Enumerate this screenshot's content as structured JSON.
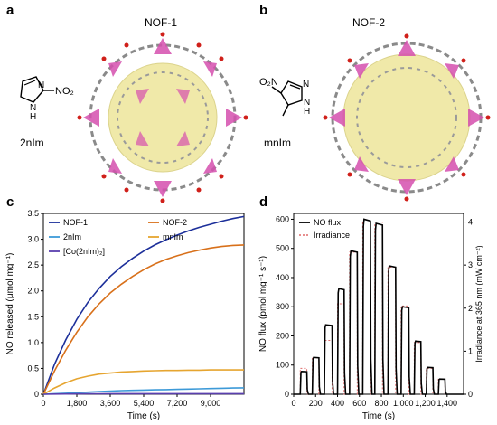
{
  "panels": {
    "a": {
      "letter": "a",
      "title": "NOF-1",
      "ligand_label": "2nIm",
      "ligand_substituent": "NO₂"
    },
    "b": {
      "letter": "b",
      "title": "NOF-2",
      "ligand_label": "mnIm",
      "ligand_substituent": "O₂N"
    },
    "c": {
      "letter": "c"
    },
    "d": {
      "letter": "d"
    }
  },
  "structure_text": {
    "nh": "N\nH",
    "n": "N",
    "nh_b": "N\nH",
    "n_b": "N"
  },
  "colors": {
    "nof1": "#1c2f9a",
    "nof2": "#d8701a",
    "im2n": "#3d9ad8",
    "mnim": "#e6a530",
    "co2nim": "#5a3fae",
    "noflux": "#000000",
    "irradiance": "#e06a6a",
    "tetra": "#d54fae",
    "sphere": "#efe7a0"
  },
  "chart_data": [
    {
      "type": "line",
      "title": "",
      "xlabel": "Time (s)",
      "ylabel": "NO released (μmol mg⁻¹)",
      "xlim": [
        0,
        10800
      ],
      "ylim": [
        0,
        3.5
      ],
      "xticks": [
        "0",
        "1,800",
        "3,600",
        "5,400",
        "7,200",
        "9,000"
      ],
      "yticks": [
        "0",
        "0.5",
        "1.0",
        "1.5",
        "2.0",
        "2.5",
        "3.0",
        "3.5"
      ],
      "legend": "top-left",
      "x": [
        0,
        600,
        1200,
        1800,
        2400,
        3000,
        3600,
        4200,
        4800,
        5400,
        6000,
        6600,
        7200,
        7800,
        8400,
        9000,
        9600,
        10200,
        10800
      ],
      "series": [
        {
          "name": "NOF-1",
          "values": [
            0,
            0.58,
            1.05,
            1.45,
            1.78,
            2.05,
            2.28,
            2.47,
            2.63,
            2.77,
            2.89,
            2.99,
            3.08,
            3.16,
            3.23,
            3.29,
            3.35,
            3.4,
            3.44
          ]
        },
        {
          "name": "NOF-2",
          "values": [
            0,
            0.45,
            0.85,
            1.2,
            1.5,
            1.75,
            1.96,
            2.13,
            2.28,
            2.41,
            2.52,
            2.61,
            2.68,
            2.74,
            2.79,
            2.83,
            2.86,
            2.88,
            2.89
          ]
        },
        {
          "name": "2nIm",
          "values": [
            0,
            0.01,
            0.02,
            0.03,
            0.04,
            0.05,
            0.06,
            0.07,
            0.075,
            0.08,
            0.085,
            0.09,
            0.095,
            0.1,
            0.105,
            0.11,
            0.115,
            0.12,
            0.125
          ]
        },
        {
          "name": "mnIm",
          "values": [
            0,
            0.12,
            0.22,
            0.3,
            0.35,
            0.39,
            0.41,
            0.43,
            0.44,
            0.45,
            0.455,
            0.46,
            0.46,
            0.465,
            0.465,
            0.47,
            0.47,
            0.47,
            0.47
          ]
        },
        {
          "name": "[Co(2nIm)₂]",
          "values": [
            0,
            0.003,
            0.005,
            0.007,
            0.008,
            0.009,
            0.01,
            0.01,
            0.01,
            0.01,
            0.01,
            0.01,
            0.01,
            0.01,
            0.01,
            0.01,
            0.01,
            0.01,
            0.01
          ]
        }
      ]
    },
    {
      "type": "line",
      "title": "",
      "xlabel": "Time (s)",
      "ylabel": "NO flux (pmol mg⁻¹ s⁻¹)",
      "ylabel_right": "Irradiance at 365 nm (mW cm⁻²)",
      "xlim": [
        0,
        1550
      ],
      "ylim": [
        0,
        620
      ],
      "ylim_right": [
        0,
        4.2
      ],
      "xticks": [
        "0",
        "200",
        "400",
        "600",
        "800",
        "1,000",
        "1,200",
        "1,400"
      ],
      "yticks": [
        "0",
        "100",
        "200",
        "300",
        "400",
        "500",
        "600"
      ],
      "yticks_right": [
        "0",
        "1",
        "2",
        "3",
        "4"
      ],
      "legend": "top-left",
      "series": [
        {
          "name": "NO flux",
          "pulses": [
            {
              "start": 60,
              "end": 120,
              "value": 78
            },
            {
              "start": 170,
              "end": 230,
              "value": 126
            },
            {
              "start": 280,
              "end": 350,
              "value": 238
            },
            {
              "start": 400,
              "end": 460,
              "value": 362
            },
            {
              "start": 510,
              "end": 580,
              "value": 492
            },
            {
              "start": 630,
              "end": 700,
              "value": 600
            },
            {
              "start": 740,
              "end": 810,
              "value": 586
            },
            {
              "start": 860,
              "end": 930,
              "value": 440
            },
            {
              "start": 980,
              "end": 1050,
              "value": 300
            },
            {
              "start": 1100,
              "end": 1160,
              "value": 182
            },
            {
              "start": 1210,
              "end": 1270,
              "value": 92
            },
            {
              "start": 1320,
              "end": 1380,
              "value": 52
            }
          ]
        },
        {
          "name": "Irradiance",
          "pulses": [
            {
              "start": 60,
              "end": 120,
              "value": 0.6
            },
            {
              "start": 170,
              "end": 230,
              "value": 0.85
            },
            {
              "start": 280,
              "end": 350,
              "value": 1.25
            },
            {
              "start": 400,
              "end": 460,
              "value": 2.1
            },
            {
              "start": 510,
              "end": 580,
              "value": 3.3
            },
            {
              "start": 630,
              "end": 700,
              "value": 4.0
            },
            {
              "start": 740,
              "end": 810,
              "value": 4.0
            },
            {
              "start": 860,
              "end": 930,
              "value": 2.95
            },
            {
              "start": 980,
              "end": 1050,
              "value": 2.05
            },
            {
              "start": 1100,
              "end": 1160,
              "value": 1.2
            },
            {
              "start": 1210,
              "end": 1270,
              "value": 0.6
            },
            {
              "start": 1320,
              "end": 1380,
              "value": 0.35
            }
          ]
        }
      ]
    }
  ]
}
